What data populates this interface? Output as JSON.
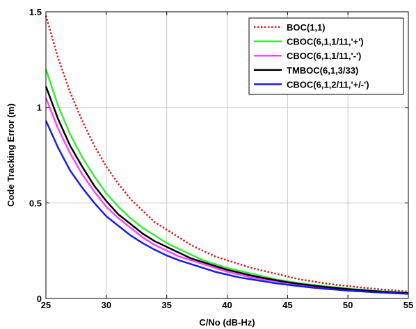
{
  "chart_data": {
    "type": "line",
    "title": "",
    "xlabel": "C/No (dB-Hz)",
    "ylabel": "Code Tracking Error (m)",
    "xlim": [
      25,
      55
    ],
    "ylim": [
      0,
      1.5
    ],
    "xticks": [
      25,
      30,
      35,
      40,
      45,
      50,
      55
    ],
    "yticks": [
      0,
      0.5,
      1,
      1.5
    ],
    "ytick_labels": [
      "0",
      "0.5",
      "1",
      "1.5"
    ],
    "grid": true,
    "legend_position": "top-right",
    "x": [
      25,
      26,
      27,
      28,
      29,
      30,
      31,
      32,
      33,
      34,
      35,
      36,
      37,
      38,
      39,
      40,
      41,
      42,
      43,
      44,
      45,
      46,
      47,
      48,
      49,
      50,
      51,
      52,
      53,
      54,
      55
    ],
    "series": [
      {
        "name": "BOC(1,1)",
        "color": "#e41a1c",
        "style": "dotted",
        "values": [
          1.48,
          1.26,
          1.08,
          0.93,
          0.8,
          0.69,
          0.6,
          0.52,
          0.46,
          0.4,
          0.36,
          0.32,
          0.28,
          0.25,
          0.22,
          0.2,
          0.18,
          0.16,
          0.145,
          0.13,
          0.115,
          0.1,
          0.09,
          0.08,
          0.072,
          0.065,
          0.058,
          0.052,
          0.046,
          0.041,
          0.036
        ]
      },
      {
        "name": "CBOC(6,1,1/11,'+')",
        "color": "#33ee33",
        "style": "solid",
        "values": [
          1.2,
          1.01,
          0.86,
          0.74,
          0.64,
          0.55,
          0.48,
          0.42,
          0.37,
          0.33,
          0.29,
          0.26,
          0.23,
          0.2,
          0.18,
          0.16,
          0.145,
          0.13,
          0.115,
          0.1,
          0.09,
          0.08,
          0.072,
          0.065,
          0.058,
          0.052,
          0.046,
          0.041,
          0.037,
          0.033,
          0.029
        ]
      },
      {
        "name": "CBOC(6,1,1/11,'-')",
        "color": "#ff44ff",
        "style": "solid",
        "values": [
          1.05,
          0.89,
          0.76,
          0.65,
          0.56,
          0.48,
          0.42,
          0.37,
          0.32,
          0.28,
          0.25,
          0.22,
          0.2,
          0.18,
          0.16,
          0.14,
          0.125,
          0.11,
          0.1,
          0.09,
          0.08,
          0.071,
          0.063,
          0.057,
          0.051,
          0.046,
          0.041,
          0.037,
          0.033,
          0.029,
          0.026
        ]
      },
      {
        "name": "TMBOC(6,1,3/33)",
        "color": "#000000",
        "style": "solid",
        "values": [
          1.11,
          0.94,
          0.8,
          0.69,
          0.59,
          0.51,
          0.44,
          0.39,
          0.34,
          0.3,
          0.27,
          0.24,
          0.21,
          0.19,
          0.17,
          0.15,
          0.135,
          0.12,
          0.107,
          0.096,
          0.085,
          0.076,
          0.068,
          0.061,
          0.055,
          0.049,
          0.044,
          0.039,
          0.035,
          0.031,
          0.028
        ]
      },
      {
        "name": "CBOC(6,1,2/11,'+/-')",
        "color": "#1a1aee",
        "style": "solid",
        "values": [
          0.93,
          0.79,
          0.67,
          0.58,
          0.5,
          0.43,
          0.38,
          0.33,
          0.29,
          0.255,
          0.225,
          0.2,
          0.18,
          0.16,
          0.14,
          0.125,
          0.11,
          0.1,
          0.09,
          0.08,
          0.072,
          0.064,
          0.057,
          0.051,
          0.046,
          0.041,
          0.037,
          0.033,
          0.03,
          0.027,
          0.024
        ]
      }
    ]
  }
}
